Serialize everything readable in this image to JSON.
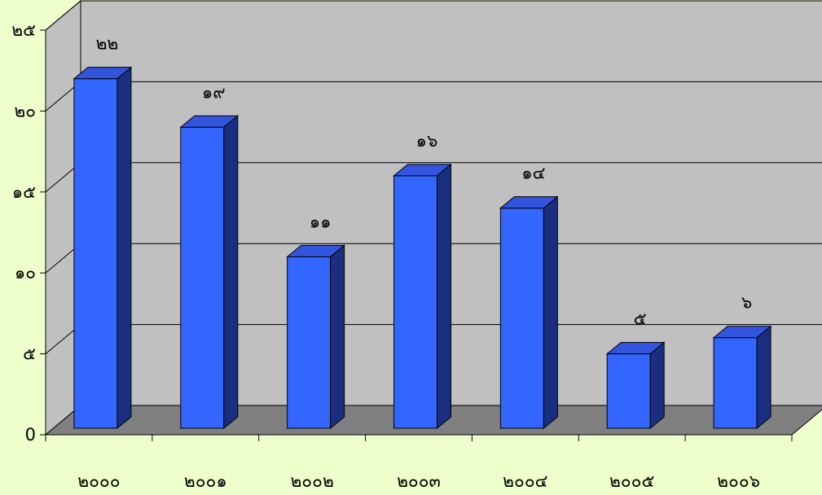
{
  "chart_data": {
    "type": "bar",
    "categories": [
      "๒๐๐๐",
      "๒๐๐๑",
      "๒๐๐๒",
      "๒๐๐๓",
      "๒๐๐๔",
      "๒๐๐๕",
      "๒๐๐๖"
    ],
    "values": [
      22,
      19,
      11,
      16,
      14,
      5,
      6
    ],
    "data_labels": [
      "๒๒",
      "๑๙",
      "๑๑",
      "๑๖",
      "๑๔",
      "๕",
      "๖"
    ],
    "ylim": [
      0,
      25
    ],
    "yticks": [
      0,
      5,
      10,
      15,
      20,
      25
    ],
    "ytick_labels": [
      "0",
      "๕",
      "๑๐",
      "๑๕",
      "๒๐",
      "๒๕"
    ],
    "grid": true,
    "legend": "none",
    "style": "3d-column",
    "colors": {
      "bar_front": "#3366ff",
      "bar_side": "#1a2f80",
      "bar_top": "#3355dd",
      "wall": "#c0c0c0",
      "floor": "#808080",
      "background": "#eeffcc"
    }
  }
}
